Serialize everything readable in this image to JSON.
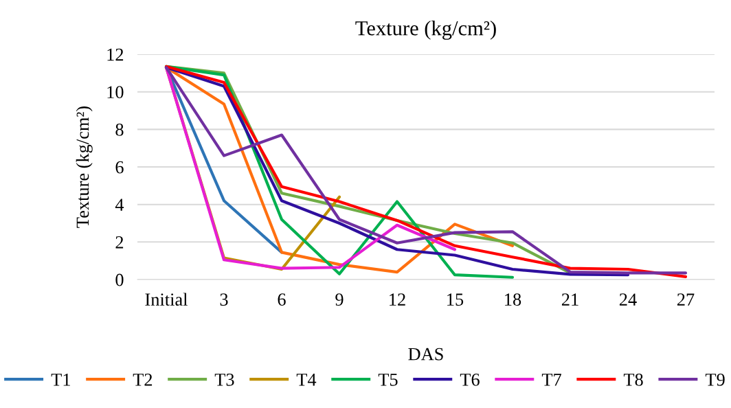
{
  "chart_data": {
    "type": "line",
    "title": "Texture (kg/cm²)",
    "xlabel": "DAS",
    "ylabel": "Texture (kg/cm²)",
    "categories": [
      "Initial",
      "3",
      "6",
      "9",
      "12",
      "15",
      "18",
      "21",
      "24",
      "27"
    ],
    "ylim": [
      0,
      12
    ],
    "yticks": [
      0,
      2,
      4,
      6,
      8,
      10,
      12
    ],
    "grid": "y",
    "legend": "bottom",
    "marker": "none",
    "line_style": "solid",
    "series": [
      {
        "name": "T1",
        "color": "#2e75b6",
        "values": [
          11.3,
          4.2,
          1.45,
          null,
          null,
          null,
          null,
          null,
          null,
          null
        ]
      },
      {
        "name": "T2",
        "color": "#ff7010",
        "values": [
          11.3,
          9.35,
          1.45,
          0.8,
          0.4,
          2.95,
          1.8,
          null,
          null,
          null
        ]
      },
      {
        "name": "T3",
        "color": "#70ad47",
        "values": [
          11.35,
          11.0,
          4.6,
          3.9,
          3.15,
          2.45,
          1.95,
          0.35,
          null,
          null
        ]
      },
      {
        "name": "T4",
        "color": "#bf9000",
        "values": [
          11.3,
          1.15,
          0.55,
          4.4,
          null,
          null,
          null,
          null,
          null,
          null
        ]
      },
      {
        "name": "T5",
        "color": "#00b050",
        "values": [
          11.35,
          10.9,
          3.2,
          0.3,
          4.15,
          0.25,
          0.12,
          null,
          null,
          null
        ]
      },
      {
        "name": "T6",
        "color": "#2e0f9e",
        "values": [
          11.3,
          10.3,
          4.2,
          3.0,
          1.6,
          1.3,
          0.55,
          0.28,
          0.25,
          null
        ]
      },
      {
        "name": "T7",
        "color": "#e61ed3",
        "values": [
          11.3,
          1.05,
          0.6,
          0.65,
          2.9,
          1.6,
          null,
          null,
          null,
          null
        ]
      },
      {
        "name": "T8",
        "color": "#ff0000",
        "values": [
          11.35,
          10.5,
          4.95,
          4.15,
          3.15,
          1.8,
          1.2,
          0.6,
          0.55,
          0.15
        ]
      },
      {
        "name": "T9",
        "color": "#7030a0",
        "values": [
          11.3,
          6.6,
          7.7,
          3.2,
          1.95,
          2.5,
          2.55,
          0.4,
          0.35,
          0.35
        ]
      }
    ]
  }
}
